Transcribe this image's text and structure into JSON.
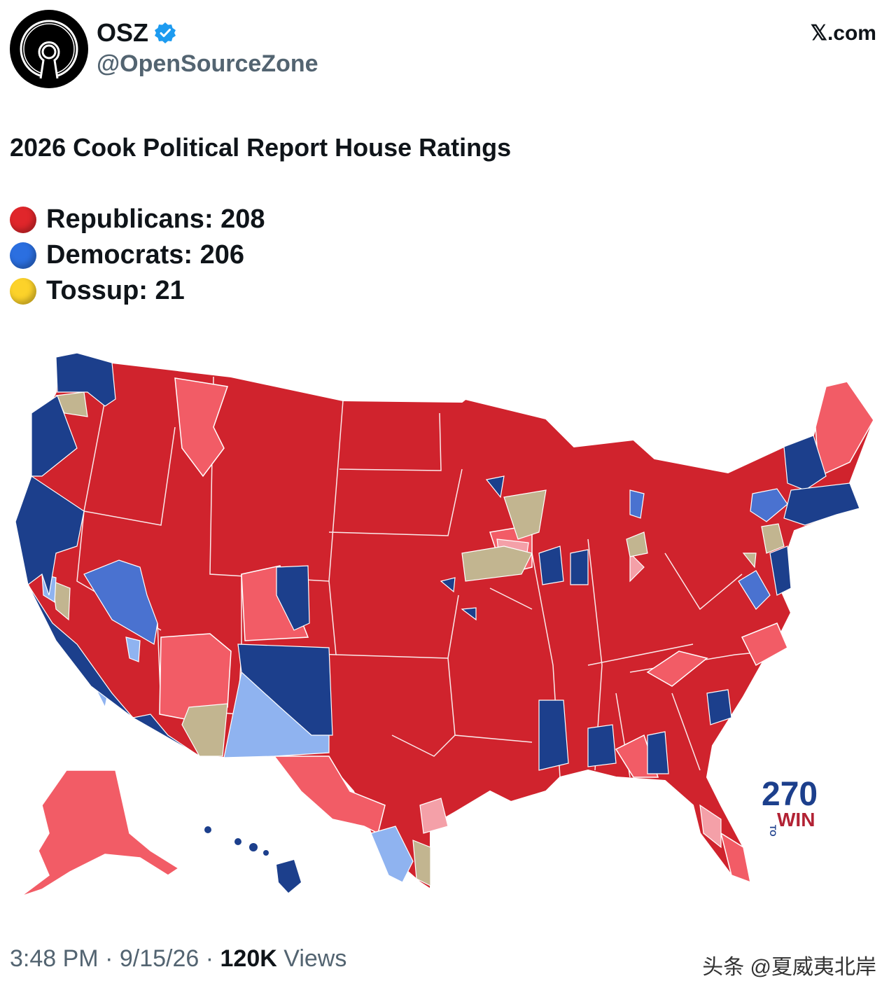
{
  "header": {
    "display_name": "OSZ",
    "handle": "@OpenSourceZone",
    "site": "𝕏.com"
  },
  "icons": {
    "avatar": "open-source-keyhole-logo",
    "verified": "verified-badge-icon"
  },
  "post": {
    "title": "2026 Cook Political Report House Ratings",
    "legend": [
      {
        "label": "Republicans: 208",
        "color": "#d93025",
        "icon": "red-circle"
      },
      {
        "label": "Democrats: 206",
        "color": "#1a73e8",
        "icon": "blue-circle"
      },
      {
        "label": "Tossup: 21",
        "color": "#f9c80e",
        "icon": "yellow-circle"
      }
    ]
  },
  "map": {
    "logo_number": "270",
    "logo_to": "TO",
    "logo_win": "WIN",
    "colors": {
      "solid_r": "#d0232d",
      "lean_r": "#f25c66",
      "likely_r": "#f4a0a8",
      "solid_d": "#1c3f8c",
      "likely_d": "#4a72d0",
      "lean_d": "#8fb3f0",
      "tossup": "#c2b590"
    }
  },
  "footer": {
    "time": "3:48 PM",
    "date": "9/15/26",
    "views_count": "120K",
    "views_label": "Views",
    "separator": " · "
  },
  "watermark": "头条 @夏威夷北岸"
}
